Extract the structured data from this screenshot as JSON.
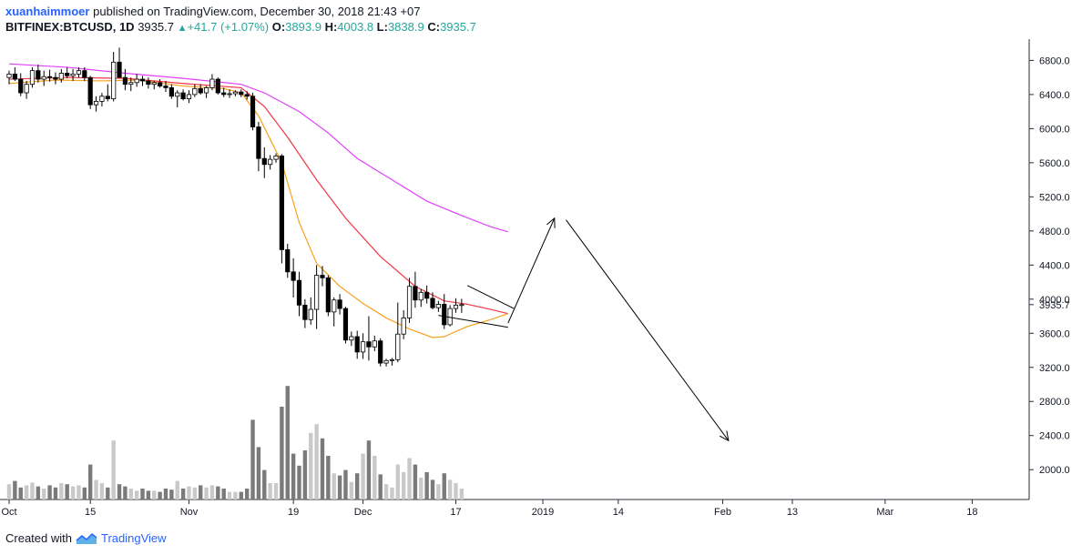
{
  "header": {
    "author": "xuanhaimmoer",
    "published_text": "published on TradingView.com, December 30, 2018 21:43 +07",
    "symbol": "BITFINEX:BTCUSD, 1D",
    "last": "3935.7",
    "change": "+41.7 (+1.07%)",
    "o_label": "O:",
    "o_value": "3893.9",
    "h_label": "H:",
    "h_value": "4003.8",
    "l_label": "L:",
    "l_value": "3838.9",
    "c_label": "C:",
    "c_value": "3935.7"
  },
  "footer": {
    "created_with": "Created with",
    "brand": "TradingView"
  },
  "price_label": "3935.7",
  "chart_data": {
    "type": "candlestick",
    "y_ticks": [
      "6800.0",
      "6400.0",
      "6000.0",
      "5600.0",
      "5200.0",
      "4800.0",
      "4400.0",
      "4000.0",
      "3600.0",
      "3200.0",
      "2800.0",
      "2400.0",
      "2000.0"
    ],
    "y_tick_values": [
      6800,
      6400,
      6000,
      5600,
      5200,
      4800,
      4400,
      4000,
      3600,
      3200,
      2800,
      2400,
      2000
    ],
    "ylim": [
      1650,
      7050
    ],
    "x_ticks": [
      {
        "label": "Oct",
        "day": 0
      },
      {
        "label": "15",
        "day": 14
      },
      {
        "label": "Nov",
        "day": 31
      },
      {
        "label": "19",
        "day": 49
      },
      {
        "label": "Dec",
        "day": 61
      },
      {
        "label": "17",
        "day": 77
      },
      {
        "label": "2019",
        "day": 92
      },
      {
        "label": "14",
        "day": 105
      },
      {
        "label": "Feb",
        "day": 123
      },
      {
        "label": "13",
        "day": 135
      },
      {
        "label": "Mar",
        "day": 151
      },
      {
        "label": "18",
        "day": 166
      }
    ],
    "candles": [
      [
        6600,
        6680,
        6520,
        6640,
        28
      ],
      [
        6640,
        6720,
        6560,
        6580,
        34
      ],
      [
        6580,
        6650,
        6380,
        6420,
        22
      ],
      [
        6420,
        6560,
        6350,
        6520,
        26
      ],
      [
        6520,
        6720,
        6480,
        6680,
        31
      ],
      [
        6680,
        6750,
        6540,
        6580,
        24
      ],
      [
        6580,
        6680,
        6500,
        6610,
        20
      ],
      [
        6610,
        6690,
        6550,
        6600,
        26
      ],
      [
        6600,
        6660,
        6520,
        6580,
        22
      ],
      [
        6580,
        6700,
        6540,
        6650,
        30
      ],
      [
        6650,
        6720,
        6590,
        6620,
        28
      ],
      [
        6620,
        6700,
        6560,
        6640,
        24
      ],
      [
        6640,
        6720,
        6600,
        6680,
        26
      ],
      [
        6680,
        6720,
        6560,
        6600,
        22
      ],
      [
        6600,
        6620,
        6230,
        6280,
        64
      ],
      [
        6280,
        6380,
        6200,
        6320,
        36
      ],
      [
        6320,
        6420,
        6260,
        6380,
        30
      ],
      [
        6380,
        6520,
        6320,
        6350,
        22
      ],
      [
        6350,
        6900,
        6320,
        6780,
        108
      ],
      [
        6780,
        6950,
        6600,
        6600,
        28
      ],
      [
        6600,
        6700,
        6450,
        6520,
        24
      ],
      [
        6520,
        6600,
        6440,
        6540,
        20
      ],
      [
        6540,
        6640,
        6490,
        6580,
        16
      ],
      [
        6580,
        6620,
        6500,
        6560,
        20
      ],
      [
        6560,
        6600,
        6470,
        6520,
        16
      ],
      [
        6520,
        6560,
        6460,
        6540,
        16
      ],
      [
        6540,
        6580,
        6480,
        6500,
        14
      ],
      [
        6500,
        6560,
        6430,
        6480,
        20
      ],
      [
        6480,
        6520,
        6350,
        6380,
        18
      ],
      [
        6380,
        6450,
        6250,
        6420,
        34
      ],
      [
        6420,
        6460,
        6330,
        6350,
        20
      ],
      [
        6350,
        6450,
        6300,
        6400,
        24
      ],
      [
        6400,
        6520,
        6370,
        6470,
        22
      ],
      [
        6470,
        6520,
        6400,
        6420,
        26
      ],
      [
        6420,
        6500,
        6360,
        6480,
        22
      ],
      [
        6480,
        6640,
        6450,
        6580,
        26
      ],
      [
        6580,
        6600,
        6400,
        6420,
        24
      ],
      [
        6420,
        6480,
        6370,
        6400,
        20
      ],
      [
        6400,
        6460,
        6360,
        6410,
        14
      ],
      [
        6410,
        6450,
        6380,
        6430,
        14
      ],
      [
        6430,
        6460,
        6370,
        6400,
        14
      ],
      [
        6400,
        6440,
        6340,
        6380,
        20
      ],
      [
        6380,
        6420,
        5980,
        6020,
        146
      ],
      [
        6020,
        6080,
        5500,
        5650,
        96
      ],
      [
        5650,
        5780,
        5420,
        5580,
        54
      ],
      [
        5580,
        5690,
        5520,
        5640,
        30
      ],
      [
        5640,
        5710,
        5600,
        5680,
        30
      ],
      [
        5680,
        5700,
        4420,
        4580,
        170
      ],
      [
        4580,
        4650,
        4250,
        4320,
        208
      ],
      [
        4320,
        4480,
        4020,
        4220,
        84
      ],
      [
        4220,
        4320,
        3800,
        3930,
        62
      ],
      [
        3930,
        4000,
        3660,
        3760,
        90
      ],
      [
        3760,
        4020,
        3700,
        3880,
        122
      ],
      [
        3880,
        4400,
        3650,
        4280,
        138
      ],
      [
        4280,
        4390,
        4150,
        4250,
        112
      ],
      [
        4250,
        4280,
        3800,
        3850,
        80
      ],
      [
        3850,
        4020,
        3680,
        3990,
        48
      ],
      [
        3990,
        4060,
        3820,
        3890,
        44
      ],
      [
        3890,
        3910,
        3480,
        3520,
        54
      ],
      [
        3520,
        3620,
        3450,
        3560,
        32
      ],
      [
        3560,
        3630,
        3300,
        3380,
        48
      ],
      [
        3380,
        3600,
        3300,
        3500,
        84
      ],
      [
        3500,
        3800,
        3280,
        3440,
        108
      ],
      [
        3440,
        3570,
        3390,
        3510,
        80
      ],
      [
        3510,
        3540,
        3210,
        3250,
        46
      ],
      [
        3250,
        3300,
        3210,
        3280,
        28
      ],
      [
        3280,
        3310,
        3220,
        3290,
        22
      ],
      [
        3290,
        3960,
        3260,
        3590,
        64
      ],
      [
        3590,
        3870,
        3530,
        3780,
        50
      ],
      [
        3780,
        4250,
        3720,
        4150,
        76
      ],
      [
        4150,
        4320,
        3900,
        3990,
        64
      ],
      [
        3990,
        4120,
        3910,
        4080,
        40
      ],
      [
        4080,
        4160,
        3950,
        4010,
        50
      ],
      [
        4010,
        4080,
        3880,
        3900,
        36
      ],
      [
        3900,
        3980,
        3850,
        3940,
        28
      ],
      [
        3940,
        4060,
        3650,
        3700,
        48
      ],
      [
        3700,
        3930,
        3680,
        3890,
        36
      ],
      [
        3890,
        4010,
        3840,
        3930,
        30
      ],
      [
        3930,
        4004,
        3839,
        3936,
        20
      ]
    ],
    "volume_label_note": "",
    "ma_orange": [
      [
        0,
        6530
      ],
      [
        8,
        6570
      ],
      [
        16,
        6560
      ],
      [
        22,
        6570
      ],
      [
        30,
        6500
      ],
      [
        37,
        6470
      ],
      [
        40,
        6420
      ],
      [
        43,
        6150
      ],
      [
        47,
        5600
      ],
      [
        50,
        4900
      ],
      [
        53,
        4420
      ],
      [
        57,
        4150
      ],
      [
        61,
        3950
      ],
      [
        65,
        3780
      ],
      [
        69,
        3650
      ],
      [
        73,
        3550
      ],
      [
        75,
        3560
      ],
      [
        79,
        3680
      ],
      [
        83,
        3760
      ],
      [
        86,
        3830
      ]
    ],
    "ma_red": [
      [
        0,
        6580
      ],
      [
        10,
        6600
      ],
      [
        20,
        6590
      ],
      [
        30,
        6530
      ],
      [
        40,
        6480
      ],
      [
        44,
        6260
      ],
      [
        48,
        5900
      ],
      [
        53,
        5400
      ],
      [
        58,
        4950
      ],
      [
        64,
        4500
      ],
      [
        70,
        4150
      ],
      [
        75,
        3980
      ],
      [
        79,
        3940
      ],
      [
        83,
        3880
      ],
      [
        86,
        3830
      ]
    ],
    "ma_magenta": [
      [
        0,
        6760
      ],
      [
        10,
        6720
      ],
      [
        20,
        6650
      ],
      [
        30,
        6590
      ],
      [
        40,
        6520
      ],
      [
        44,
        6420
      ],
      [
        50,
        6200
      ],
      [
        55,
        5950
      ],
      [
        60,
        5650
      ],
      [
        66,
        5400
      ],
      [
        72,
        5150
      ],
      [
        78,
        4980
      ],
      [
        83,
        4850
      ],
      [
        86,
        4790
      ]
    ],
    "drawings": {
      "triangle_upper": [
        [
          79,
          4160
        ],
        [
          87,
          3890
        ]
      ],
      "triangle_lower": [
        [
          74,
          3810
        ],
        [
          86,
          3670
        ]
      ],
      "arrow_up": [
        [
          86,
          3720
        ],
        [
          94,
          4950
        ]
      ],
      "arrow_down": [
        [
          96,
          4930
        ],
        [
          124,
          2340
        ]
      ]
    },
    "colors": {
      "ma_orange": "#f7a21b",
      "ma_red": "#f23645",
      "ma_magenta": "#e040fb",
      "vol_up": "#c9c9c9",
      "vol_down": "#7a7a7a",
      "candle": "#000000",
      "grid_axis": "#2a2e39"
    },
    "grid": false
  }
}
